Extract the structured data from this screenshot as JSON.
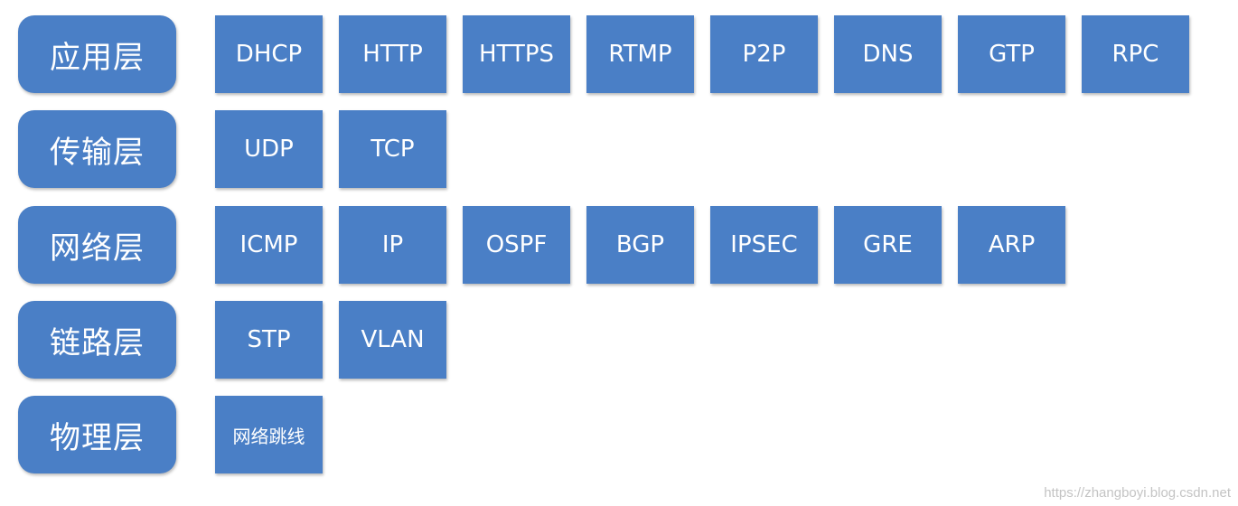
{
  "layers": [
    {
      "name": "应用层",
      "protocols": [
        "DHCP",
        "HTTP",
        "HTTPS",
        "RTMP",
        "P2P",
        "DNS",
        "GTP",
        "RPC"
      ]
    },
    {
      "name": "传输层",
      "protocols": [
        "UDP",
        "TCP"
      ]
    },
    {
      "name": "网络层",
      "protocols": [
        "ICMP",
        "IP",
        "OSPF",
        "BGP",
        "IPSEC",
        "GRE",
        "ARP"
      ]
    },
    {
      "name": "链路层",
      "protocols": [
        "STP",
        "VLAN"
      ]
    },
    {
      "name": "物理层",
      "protocols": [
        "网络跳线"
      ]
    }
  ],
  "watermark": "https://zhangboyi.blog.csdn.net",
  "colors": {
    "box": "#4a7fc6",
    "text": "#ffffff",
    "watermark": "#c4c4c4"
  }
}
